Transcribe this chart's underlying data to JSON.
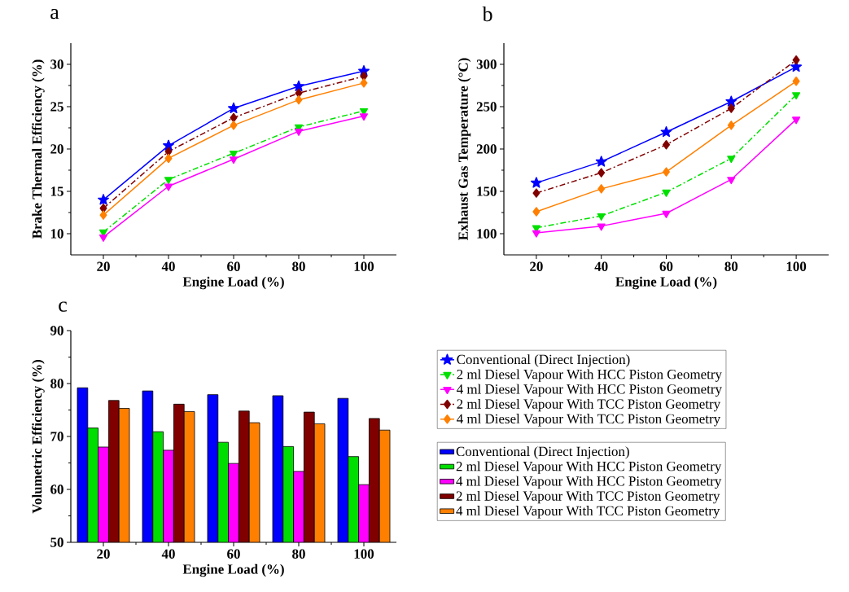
{
  "chart_data": [
    {
      "type": "line",
      "title": "a",
      "xlabel": "Engine Load (%)",
      "ylabel": "Brake Thermal Efficiency (%)",
      "x": [
        20,
        40,
        60,
        80,
        100
      ],
      "xlim": [
        10,
        110
      ],
      "xticks": [
        20,
        40,
        60,
        80,
        100
      ],
      "ylim": [
        7.5,
        32.5
      ],
      "yticks": [
        10,
        15,
        20,
        25,
        30
      ],
      "legend": false,
      "series": [
        {
          "color": "#0000ff",
          "marker": "star",
          "line_style": "solid",
          "values": [
            14.0,
            20.4,
            24.8,
            27.4,
            29.2
          ]
        },
        {
          "color": "#00e000",
          "marker": "triangle",
          "line_style": "dashdot",
          "values": [
            10.2,
            16.4,
            19.5,
            22.6,
            24.5
          ]
        },
        {
          "color": "#ff00ff",
          "marker": "triangle",
          "line_style": "solid",
          "values": [
            9.6,
            15.6,
            18.8,
            22.1,
            23.9
          ]
        },
        {
          "color": "#800000",
          "marker": "diamond",
          "line_style": "dashdot",
          "values": [
            13.0,
            19.7,
            23.7,
            26.6,
            28.6
          ]
        },
        {
          "color": "#ff8000",
          "marker": "diamond",
          "line_style": "solid",
          "values": [
            12.2,
            18.9,
            22.8,
            25.8,
            27.8
          ]
        }
      ]
    },
    {
      "type": "line",
      "title": "b",
      "xlabel": "Engine Load (%)",
      "ylabel": "Exhaust Gas  Temperature (°C)",
      "x": [
        20,
        40,
        60,
        80,
        100
      ],
      "xlim": [
        10,
        110
      ],
      "xticks": [
        20,
        40,
        60,
        80,
        100
      ],
      "ylim": [
        75,
        325
      ],
      "yticks": [
        100,
        150,
        200,
        250,
        300
      ],
      "legend": "bottom",
      "series": [
        {
          "name": "Conventional (Direct Injection)",
          "color": "#0000ff",
          "marker": "star",
          "line_style": "solid",
          "values": [
            160,
            185,
            220,
            256,
            297
          ]
        },
        {
          "name": "2 ml Diesel Vapour With HCC Piston Geometry",
          "color": "#00e000",
          "marker": "triangle",
          "line_style": "dashdot",
          "values": [
            107,
            121,
            149,
            189,
            264
          ]
        },
        {
          "name": "4 ml Diesel Vapour With HCC Piston Geometry",
          "color": "#ff00ff",
          "marker": "triangle",
          "line_style": "solid",
          "values": [
            101,
            109,
            124,
            164,
            235
          ]
        },
        {
          "name": "2 ml Diesel Vapour With TCC Piston Geometry",
          "color": "#800000",
          "marker": "diamond",
          "line_style": "dashdot",
          "values": [
            148,
            172,
            205,
            248,
            305
          ]
        },
        {
          "name": "4 ml Diesel Vapour With TCC Piston Geometry",
          "color": "#ff8000",
          "marker": "diamond",
          "line_style": "solid",
          "values": [
            126,
            153,
            173,
            228,
            280
          ]
        }
      ]
    },
    {
      "type": "bar",
      "title": "c",
      "xlabel": "Engine Load (%)",
      "ylabel": "Volumetric Efficiency (%)",
      "x": [
        20,
        40,
        60,
        80,
        100
      ],
      "xlim": [
        10,
        110
      ],
      "xticks": [
        20,
        40,
        60,
        80,
        100
      ],
      "ylim": [
        50,
        90
      ],
      "yticks": [
        50,
        60,
        70,
        80,
        90
      ],
      "legend": "right",
      "series": [
        {
          "name": "Conventional (Direct Injection)",
          "color": "#0000ff",
          "values": [
            79.2,
            78.6,
            77.9,
            77.7,
            77.2
          ]
        },
        {
          "name": "2 ml Diesel Vapour With HCC Piston Geometry",
          "color": "#00dd00",
          "values": [
            71.6,
            70.9,
            68.9,
            68.1,
            66.2
          ]
        },
        {
          "name": "4 ml Diesel Vapour With HCC Piston Geometry",
          "color": "#ff00ff",
          "values": [
            68.0,
            67.4,
            64.9,
            63.4,
            60.9
          ]
        },
        {
          "name": "2 ml Diesel Vapour With TCC Piston Geometry",
          "color": "#800000",
          "values": [
            76.8,
            76.1,
            74.8,
            74.6,
            73.4
          ]
        },
        {
          "name": "4 ml Diesel Vapour With TCC Piston Geometry",
          "color": "#ff8000",
          "values": [
            75.3,
            74.7,
            72.6,
            72.4,
            71.2
          ]
        }
      ]
    }
  ]
}
